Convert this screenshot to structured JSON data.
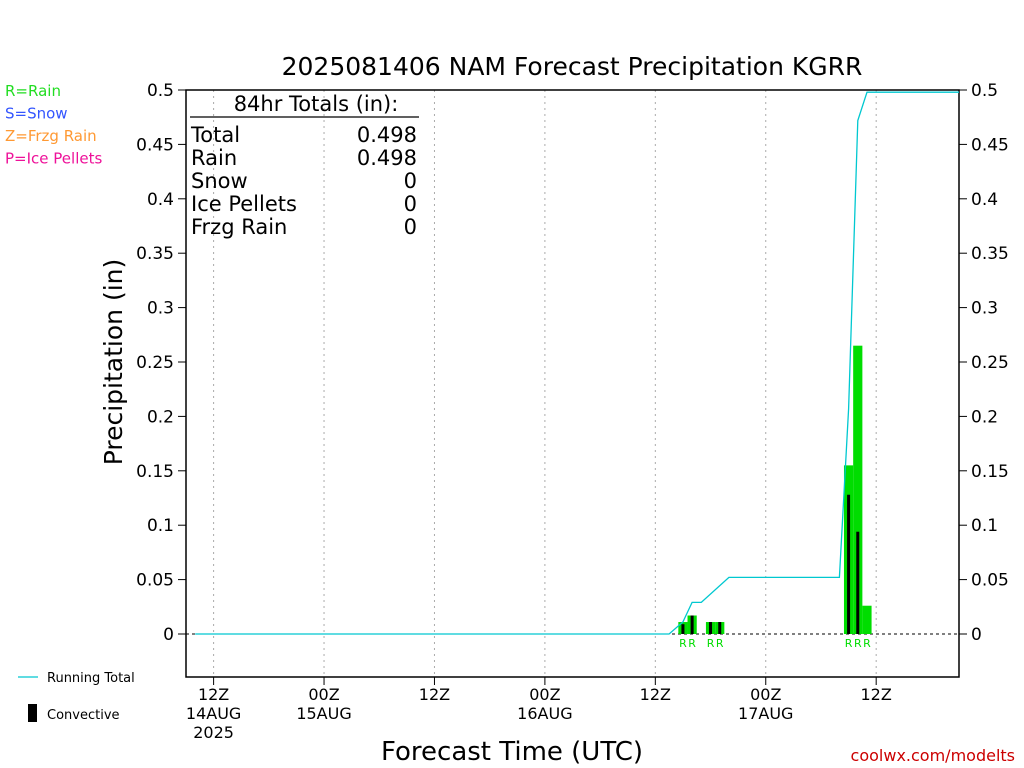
{
  "title": "2025081406 NAM Forecast Precipitation KGRR",
  "legend_types": [
    {
      "label": "R=Rain",
      "color": "#22dd22"
    },
    {
      "label": "S=Snow",
      "color": "#3355ff"
    },
    {
      "label": "Z=Frzg Rain",
      "color": "#ff9933"
    },
    {
      "label": "P=Ice Pellets",
      "color": "#ee1199"
    }
  ],
  "legend_lines": {
    "running_total": "Running Total",
    "convective": "Convective",
    "running_total_color": "#00c8d0",
    "convective_color": "#000000"
  },
  "totals": {
    "header": "84hr Totals (in):",
    "rows": [
      {
        "label": "Total",
        "value": "0.498"
      },
      {
        "label": "Rain",
        "value": "0.498"
      },
      {
        "label": "Snow",
        "value": "0"
      },
      {
        "label": "Ice Pellets",
        "value": "0"
      },
      {
        "label": "Frzg Rain",
        "value": "0"
      }
    ]
  },
  "credit": "coolwx.com/modelts",
  "credit_color": "#cc0000",
  "chart_data": {
    "type": "bar",
    "title": "2025081406 NAM Forecast Precipitation KGRR",
    "xlabel": "Forecast Time (UTC)",
    "ylabel": "Precipitation (in)",
    "ylim": [
      -0.04,
      0.5
    ],
    "yticks": [
      0,
      0.05,
      0.1,
      0.15,
      0.2,
      0.25,
      0.3,
      0.35,
      0.4,
      0.45,
      0.5
    ],
    "ytick_labels": [
      "0",
      "0.05",
      "0.1",
      "0.15",
      "0.2",
      "0.25",
      "0.3",
      "0.35",
      "0.4",
      "0.45",
      "0.5"
    ],
    "xlim": [
      3,
      87
    ],
    "x_unit": "forecast hour",
    "xticks": [
      {
        "hour": 6,
        "lines": [
          "12Z",
          "14AUG",
          "2025"
        ]
      },
      {
        "hour": 18,
        "lines": [
          "00Z",
          "15AUG"
        ]
      },
      {
        "hour": 30,
        "lines": [
          "12Z"
        ]
      },
      {
        "hour": 42,
        "lines": [
          "00Z",
          "16AUG"
        ]
      },
      {
        "hour": 54,
        "lines": [
          "12Z"
        ]
      },
      {
        "hour": 66,
        "lines": [
          "00Z",
          "17AUG"
        ]
      },
      {
        "hour": 78,
        "lines": [
          "12Z"
        ]
      }
    ],
    "grid": "vertical dotted",
    "series": [
      {
        "name": "Rain",
        "color": "#00dd00",
        "bars": [
          {
            "hour": 57,
            "value": 0.011,
            "convective": 0.009
          },
          {
            "hour": 58,
            "value": 0.017,
            "convective": 0.017
          },
          {
            "hour": 60,
            "value": 0.011,
            "convective": 0.011
          },
          {
            "hour": 61,
            "value": 0.011,
            "convective": 0.011
          },
          {
            "hour": 75,
            "value": 0.155,
            "convective": 0.128
          },
          {
            "hour": 76,
            "value": 0.265,
            "convective": 0.094
          },
          {
            "hour": 77,
            "value": 0.026,
            "convective": 0
          }
        ]
      }
    ],
    "running_total": [
      {
        "hour": 4,
        "value": 0
      },
      {
        "hour": 55.5,
        "value": 0
      },
      {
        "hour": 57,
        "value": 0.011
      },
      {
        "hour": 58,
        "value": 0.029
      },
      {
        "hour": 59,
        "value": 0.029
      },
      {
        "hour": 62,
        "value": 0.052
      },
      {
        "hour": 74,
        "value": 0.052
      },
      {
        "hour": 75,
        "value": 0.207
      },
      {
        "hour": 76,
        "value": 0.472
      },
      {
        "hour": 77,
        "value": 0.498
      },
      {
        "hour": 87,
        "value": 0.498
      }
    ],
    "type_markers": [
      {
        "hour": 57,
        "label": "R"
      },
      {
        "hour": 58,
        "label": "R"
      },
      {
        "hour": 60,
        "label": "R"
      },
      {
        "hour": 61,
        "label": "R"
      },
      {
        "hour": 75,
        "label": "R"
      },
      {
        "hour": 76,
        "label": "R"
      },
      {
        "hour": 77,
        "label": "R"
      }
    ]
  }
}
